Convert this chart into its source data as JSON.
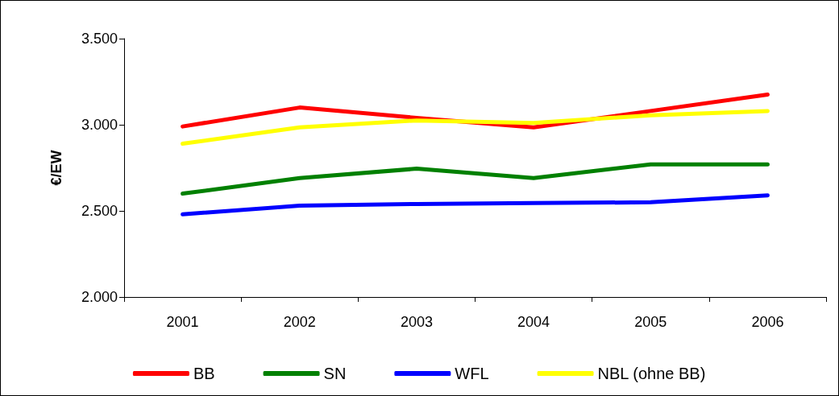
{
  "chart_data": {
    "type": "line",
    "ylabel": "€/EW",
    "categories": [
      "2001",
      "2002",
      "2003",
      "2004",
      "2005",
      "2006"
    ],
    "series": [
      {
        "name": "BB",
        "color": "#ff0000",
        "values": [
          2990,
          3100,
          3040,
          2985,
          3080,
          3175
        ]
      },
      {
        "name": "SN",
        "color": "#008000",
        "values": [
          2600,
          2690,
          2745,
          2690,
          2770,
          2770
        ]
      },
      {
        "name": "WFL",
        "color": "#0000ff",
        "values": [
          2480,
          2530,
          2540,
          2545,
          2550,
          2590
        ]
      },
      {
        "name": "NBL (ohne BB)",
        "color": "#ffff00",
        "values": [
          2890,
          2985,
          3025,
          3010,
          3055,
          3080
        ]
      }
    ],
    "ylim": [
      2000,
      3500
    ],
    "yticks": [
      {
        "value": 2000,
        "label": "2.000"
      },
      {
        "value": 2500,
        "label": "2.500"
      },
      {
        "value": 3000,
        "label": "3.000"
      },
      {
        "value": 3500,
        "label": "3.500"
      }
    ],
    "grid": false,
    "legend": "bottom",
    "marker": "none",
    "line_style": "solid"
  }
}
